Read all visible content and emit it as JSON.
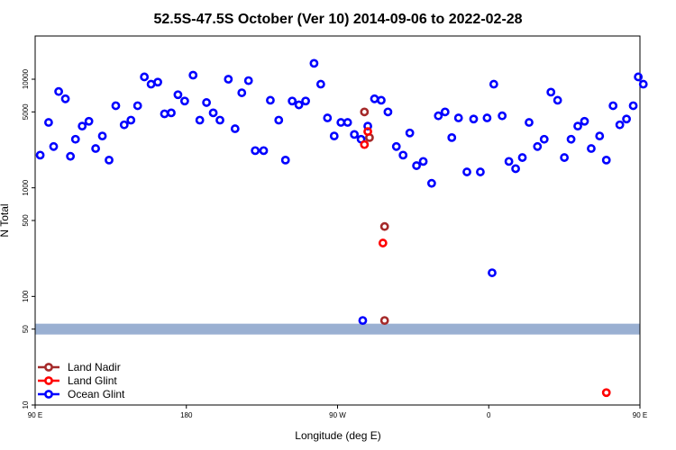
{
  "chart_data": {
    "type": "scatter",
    "title": "52.5S-47.5S October (Ver 10)   2014-09-06 to 2022-02-28",
    "xlabel": "Longitude (deg E)",
    "ylabel": "N Total",
    "x_scale": "linear",
    "y_scale": "log",
    "xlim": [
      90,
      450
    ],
    "ylim": [
      10,
      25000
    ],
    "x_ticks": [
      {
        "value": 90,
        "label": "90 E"
      },
      {
        "value": 180,
        "label": "180"
      },
      {
        "value": 270,
        "label": "90 W"
      },
      {
        "value": 360,
        "label": "0"
      },
      {
        "value": 450,
        "label": "90 E"
      },
      {
        "value": 540,
        "label": "180"
      }
    ],
    "y_ticks": [
      {
        "value": 10,
        "label": "10"
      },
      {
        "value": 50,
        "label": "50"
      },
      {
        "value": 100,
        "label": "100"
      },
      {
        "value": 500,
        "label": "500"
      },
      {
        "value": 1000,
        "label": "1000"
      },
      {
        "value": 5000,
        "label": "5000"
      },
      {
        "value": 10000,
        "label": "10000"
      }
    ],
    "threshold_band": {
      "value": 50,
      "color": "#9ab0d2"
    },
    "legend": {
      "placement": "bottom-left"
    },
    "series": [
      {
        "name": "Land Nadir",
        "color": "#a52a2a",
        "points": [
          [
            286,
            5000
          ],
          [
            289,
            2900
          ],
          [
            298,
            440
          ],
          [
            298,
            60
          ]
        ]
      },
      {
        "name": "Land Glint",
        "color": "#ff0000",
        "points": [
          [
            286,
            2500
          ],
          [
            288,
            3300
          ],
          [
            297,
            310
          ],
          [
            430,
            13
          ]
        ]
      },
      {
        "name": "Ocean Glint",
        "color": "#0000ff",
        "points": [
          [
            93,
            2000
          ],
          [
            98,
            4000
          ],
          [
            101,
            2400
          ],
          [
            104,
            7700
          ],
          [
            108,
            6600
          ],
          [
            111,
            1950
          ],
          [
            114,
            2800
          ],
          [
            118,
            3700
          ],
          [
            122,
            4100
          ],
          [
            126,
            2300
          ],
          [
            130,
            3000
          ],
          [
            134,
            1800
          ],
          [
            138,
            5700
          ],
          [
            143,
            3800
          ],
          [
            147,
            4200
          ],
          [
            151,
            5700
          ],
          [
            155,
            10500
          ],
          [
            159,
            9000
          ],
          [
            163,
            9400
          ],
          [
            167,
            4800
          ],
          [
            171,
            4900
          ],
          [
            175,
            7200
          ],
          [
            179,
            6300
          ],
          [
            184,
            10900
          ],
          [
            188,
            4200
          ],
          [
            192,
            6100
          ],
          [
            196,
            4900
          ],
          [
            200,
            4200
          ],
          [
            205,
            10000
          ],
          [
            209,
            3500
          ],
          [
            213,
            7500
          ],
          [
            217,
            9700
          ],
          [
            221,
            2200
          ],
          [
            226,
            2200
          ],
          [
            230,
            6400
          ],
          [
            235,
            4200
          ],
          [
            239,
            1800
          ],
          [
            243,
            6300
          ],
          [
            247,
            5800
          ],
          [
            251,
            6300
          ],
          [
            256,
            14000
          ],
          [
            260,
            9000
          ],
          [
            264,
            4400
          ],
          [
            268,
            3000
          ],
          [
            272,
            4000
          ],
          [
            276,
            4000
          ],
          [
            280,
            3100
          ],
          [
            284,
            2800
          ],
          [
            288,
            3700
          ],
          [
            292,
            6600
          ],
          [
            296,
            6400
          ],
          [
            300,
            5000
          ],
          [
            305,
            2400
          ],
          [
            309,
            2000
          ],
          [
            313,
            3200
          ],
          [
            317,
            1600
          ],
          [
            321,
            1750
          ],
          [
            326,
            1100
          ],
          [
            330,
            4600
          ],
          [
            334,
            5000
          ],
          [
            338,
            2900
          ],
          [
            342,
            4400
          ],
          [
            347,
            1400
          ],
          [
            351,
            4300
          ],
          [
            355,
            1400
          ],
          [
            359,
            4400
          ],
          [
            363,
            9000
          ],
          [
            368,
            4600
          ],
          [
            372,
            1750
          ],
          [
            376,
            1500
          ],
          [
            380,
            1900
          ],
          [
            384,
            4000
          ],
          [
            389,
            2400
          ],
          [
            393,
            2800
          ],
          [
            397,
            7600
          ],
          [
            401,
            6400
          ],
          [
            405,
            1900
          ],
          [
            409,
            2800
          ],
          [
            413,
            3700
          ],
          [
            417,
            4100
          ],
          [
            421,
            2300
          ],
          [
            426,
            3000
          ],
          [
            430,
            1800
          ],
          [
            434,
            5700
          ],
          [
            438,
            3800
          ],
          [
            442,
            4300
          ],
          [
            446,
            5700
          ],
          [
            449,
            10500
          ],
          [
            452,
            9000
          ],
          [
            362,
            165
          ],
          [
            285,
            60
          ]
        ]
      }
    ]
  }
}
